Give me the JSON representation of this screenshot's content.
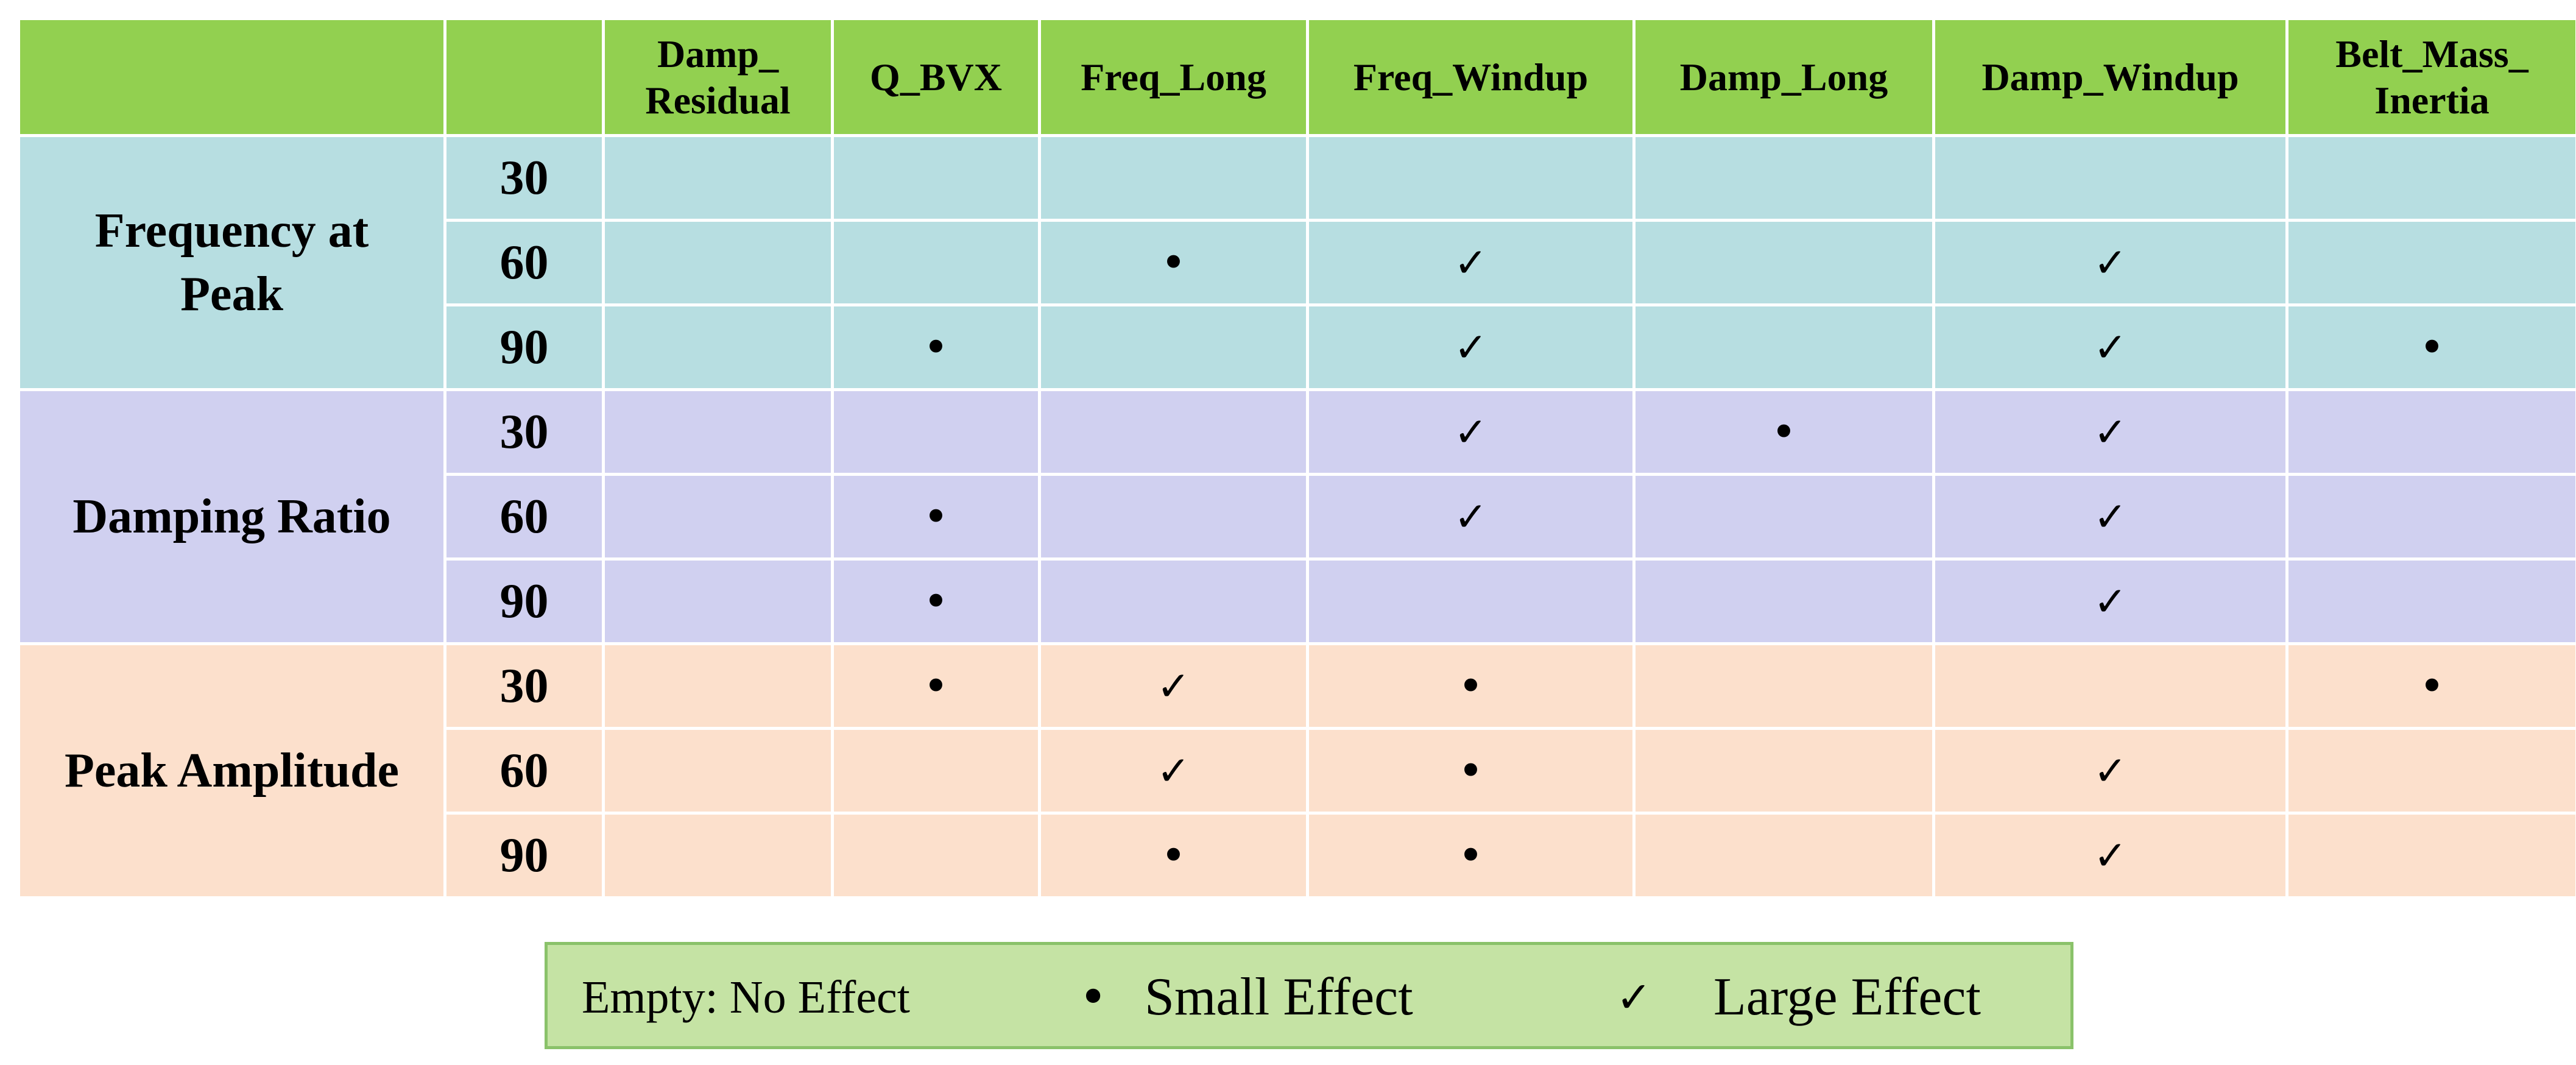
{
  "columns": [
    "",
    "",
    "Damp_\nResidual",
    "Q_BVX",
    "Freq_Long",
    "Freq_Windup",
    "Damp_Long",
    "Damp_Windup",
    "Belt_Mass_\nInertia"
  ],
  "header": {
    "damp_residual": "Damp_ Residual",
    "q_bvx": "Q_BVX",
    "freq_long": "Freq_Long",
    "freq_windup": "Freq_Windup",
    "damp_long": "Damp_Long",
    "damp_windup": "Damp_Windup",
    "belt_mass_inertia": "Belt_Mass_ Inertia"
  },
  "symbols": {
    "small": "•",
    "large": "✓"
  },
  "groups": [
    {
      "label": "Frequency at Peak",
      "color": "#b7dee1",
      "rows": [
        {
          "speed": "30",
          "cells": [
            "",
            "",
            "",
            "",
            "",
            "",
            ""
          ]
        },
        {
          "speed": "60",
          "cells": [
            "",
            "",
            "•",
            "✓",
            "",
            "✓",
            ""
          ]
        },
        {
          "speed": "90",
          "cells": [
            "",
            "•",
            "",
            "✓",
            "",
            "✓",
            "•"
          ]
        }
      ]
    },
    {
      "label": "Damping Ratio",
      "color": "#d0d0f0",
      "rows": [
        {
          "speed": "30",
          "cells": [
            "",
            "",
            "",
            "✓",
            "•",
            "✓",
            ""
          ]
        },
        {
          "speed": "60",
          "cells": [
            "",
            "•",
            "",
            "✓",
            "",
            "✓",
            ""
          ]
        },
        {
          "speed": "90",
          "cells": [
            "",
            "•",
            "",
            "",
            "",
            "✓",
            ""
          ]
        }
      ]
    },
    {
      "label": "Peak Amplitude",
      "color": "#fce0cc",
      "rows": [
        {
          "speed": "30",
          "cells": [
            "",
            "•",
            "✓",
            "•",
            "",
            "",
            "•"
          ]
        },
        {
          "speed": "60",
          "cells": [
            "",
            "",
            "✓",
            "•",
            "",
            "✓",
            ""
          ]
        },
        {
          "speed": "90",
          "cells": [
            "",
            "",
            "•",
            "•",
            "",
            "✓",
            ""
          ]
        }
      ]
    }
  ],
  "legend": {
    "empty": "Empty: No Effect",
    "small_symbol": "•",
    "small": "Small Effect",
    "large_symbol": "✓",
    "large": "Large Effect"
  },
  "colors": {
    "header": "#92d050",
    "legend_bg": "#c5e3a4"
  }
}
